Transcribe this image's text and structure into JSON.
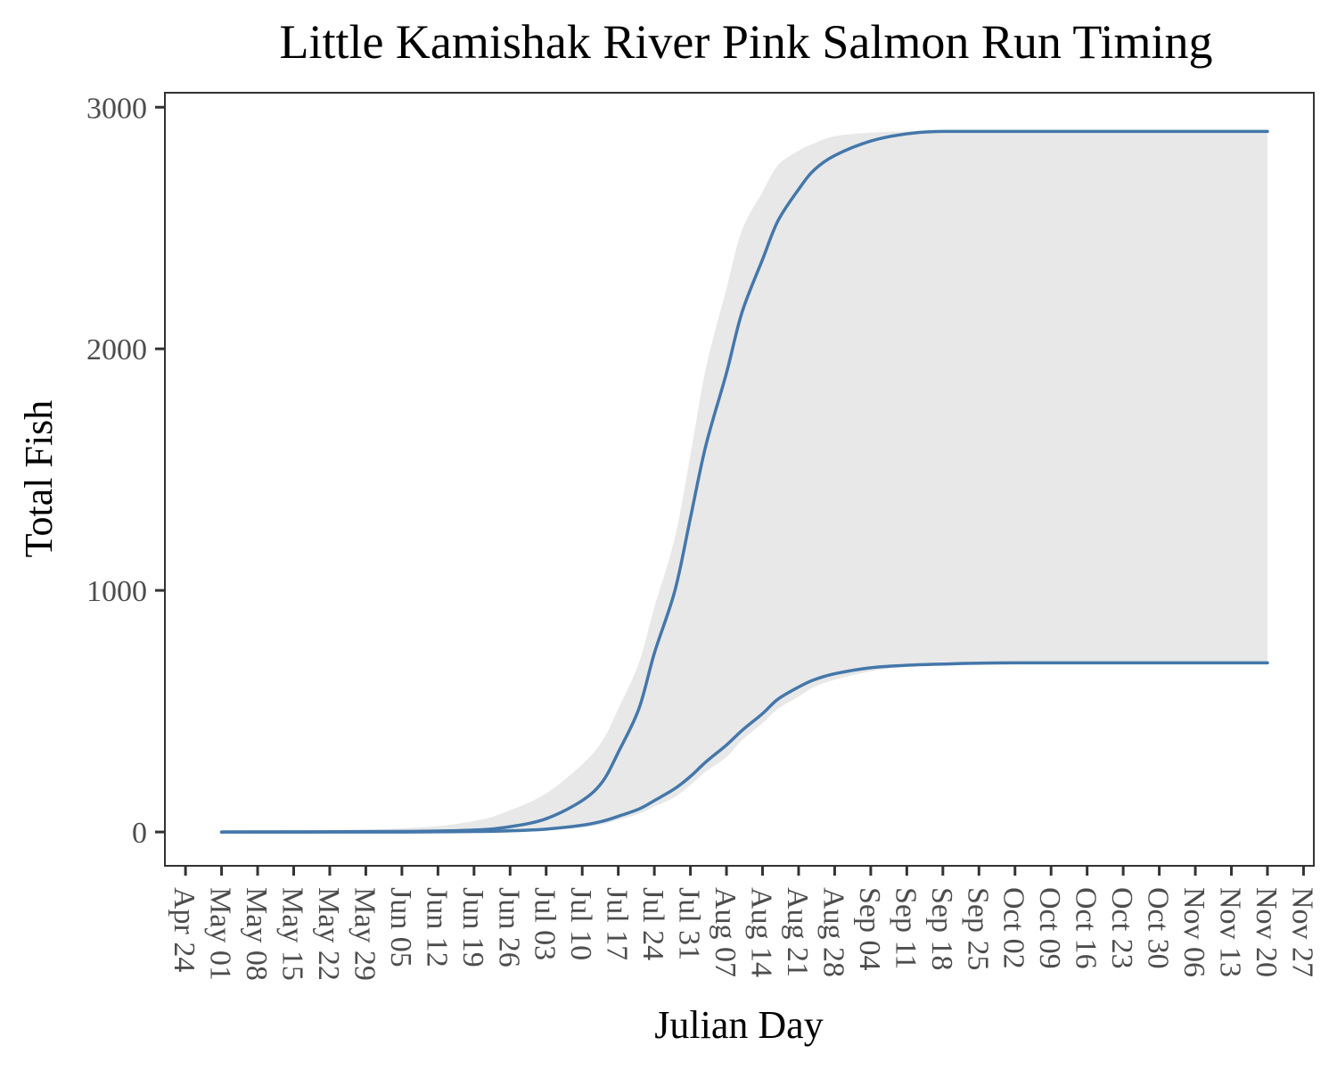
{
  "colors": {
    "line": "#4477aa",
    "band": "#e8e8e8",
    "frame": "#333333",
    "tick_text": "#4d4d4d",
    "background": "#ffffff"
  },
  "chart_data": {
    "type": "line",
    "title": "Little Kamishak River Pink Salmon Run Timing",
    "xlabel": "Julian Day",
    "ylabel": "Total Fish",
    "xlim": [
      "2024-04-20",
      "2024-11-29"
    ],
    "ylim": [
      -140,
      3060
    ],
    "grid": false,
    "legend": "none",
    "x_ticks": [
      "Apr 24",
      "May 01",
      "May 08",
      "May 15",
      "May 22",
      "May 29",
      "Jun 05",
      "Jun 12",
      "Jun 19",
      "Jun 26",
      "Jul 03",
      "Jul 10",
      "Jul 17",
      "Jul 24",
      "Jul 31",
      "Aug 07",
      "Aug 14",
      "Aug 21",
      "Aug 28",
      "Sep 04",
      "Sep 11",
      "Sep 18",
      "Sep 25",
      "Oct 02",
      "Oct 09",
      "Oct 16",
      "Oct 23",
      "Oct 30",
      "Nov 06",
      "Nov 13",
      "Nov 20",
      "Nov 27"
    ],
    "x_tick_dates": [
      "2024-04-24",
      "2024-05-01",
      "2024-05-08",
      "2024-05-15",
      "2024-05-22",
      "2024-05-29",
      "2024-06-05",
      "2024-06-12",
      "2024-06-19",
      "2024-06-26",
      "2024-07-03",
      "2024-07-10",
      "2024-07-17",
      "2024-07-24",
      "2024-07-31",
      "2024-08-07",
      "2024-08-14",
      "2024-08-21",
      "2024-08-28",
      "2024-09-04",
      "2024-09-11",
      "2024-09-18",
      "2024-09-25",
      "2024-10-02",
      "2024-10-09",
      "2024-10-16",
      "2024-10-23",
      "2024-10-30",
      "2024-11-06",
      "2024-11-13",
      "2024-11-20",
      "2024-11-27"
    ],
    "y_ticks": [
      0,
      1000,
      2000,
      3000
    ],
    "y_tick_labels": [
      "0",
      "1000",
      "2000",
      "3000"
    ],
    "x": [
      "2024-05-01",
      "2024-06-05",
      "2024-06-19",
      "2024-06-26",
      "2024-07-03",
      "2024-07-10",
      "2024-07-14",
      "2024-07-17",
      "2024-07-21",
      "2024-07-24",
      "2024-07-28",
      "2024-07-31",
      "2024-08-03",
      "2024-08-07",
      "2024-08-10",
      "2024-08-14",
      "2024-08-17",
      "2024-08-21",
      "2024-08-24",
      "2024-08-28",
      "2024-09-04",
      "2024-09-11",
      "2024-09-18",
      "2024-10-02",
      "2024-11-20"
    ],
    "series": [
      {
        "values": [
          0,
          2,
          8,
          22,
          55,
          130,
          210,
          330,
          510,
          740,
          1000,
          1300,
          1600,
          1900,
          2150,
          2370,
          2530,
          2660,
          2740,
          2800,
          2860,
          2890,
          2900,
          2900,
          2900
        ]
      },
      {
        "values": [
          0,
          0,
          2,
          5,
          12,
          28,
          45,
          65,
          95,
          130,
          180,
          230,
          290,
          360,
          420,
          490,
          550,
          600,
          630,
          655,
          680,
          690,
          695,
          700,
          700
        ]
      }
    ],
    "band": {
      "upper": [
        0,
        15,
        45,
        90,
        160,
        280,
        380,
        510,
        700,
        930,
        1220,
        1560,
        1920,
        2250,
        2490,
        2650,
        2760,
        2820,
        2850,
        2880,
        2895,
        2900,
        2900,
        2900,
        2900
      ],
      "lower": [
        0,
        0,
        1,
        3,
        8,
        20,
        32,
        50,
        75,
        105,
        145,
        195,
        250,
        310,
        380,
        450,
        510,
        560,
        600,
        630,
        665,
        685,
        692,
        700,
        700
      ]
    }
  }
}
